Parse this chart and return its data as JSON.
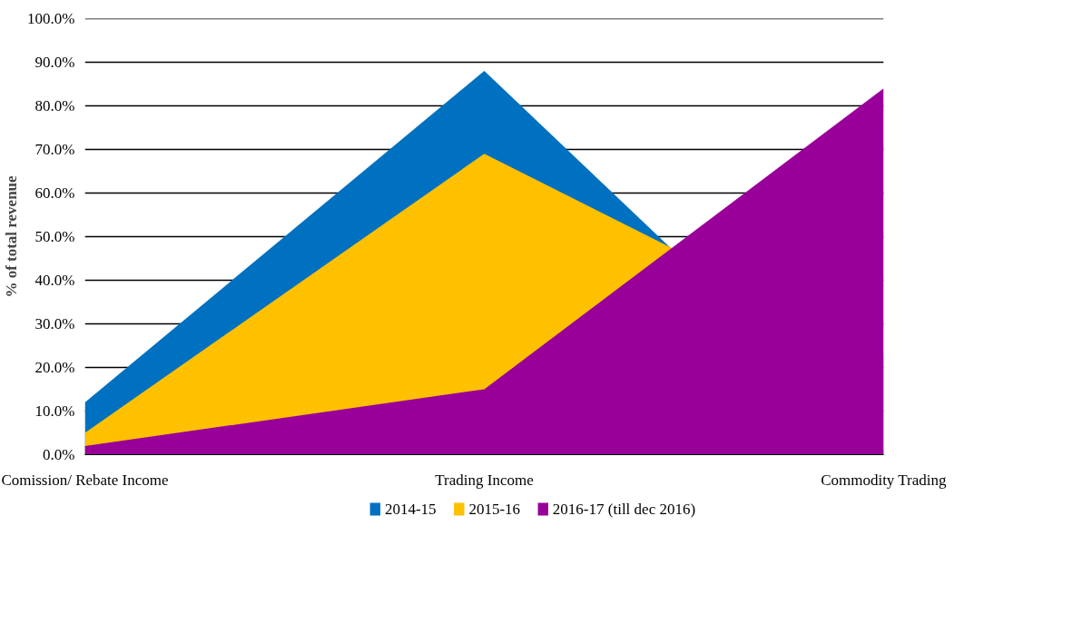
{
  "chart_data": {
    "type": "area",
    "ylabel": "% of total revenue",
    "categories": [
      "Comission/ Rebate Income",
      "Trading Income",
      "Commodity Trading"
    ],
    "series": [
      {
        "name": "2014-15",
        "color": "#0070c0",
        "values": [
          12,
          88,
          1
        ]
      },
      {
        "name": "2015-16",
        "color": "#ffc000",
        "values": [
          5,
          69,
          23
        ]
      },
      {
        "name": "2016-17  (till dec 2016)",
        "color": "#990099",
        "values": [
          2,
          15,
          84
        ]
      }
    ],
    "ylim": [
      0,
      100
    ],
    "yticks": [
      {
        "value": 0,
        "label": "0.0%"
      },
      {
        "value": 10,
        "label": "10.0%"
      },
      {
        "value": 20,
        "label": "20.0%"
      },
      {
        "value": 30,
        "label": "30.0%"
      },
      {
        "value": 40,
        "label": "40.0%"
      },
      {
        "value": 50,
        "label": "50.0%"
      },
      {
        "value": 60,
        "label": "60.0%"
      },
      {
        "value": 70,
        "label": "70.0%"
      },
      {
        "value": 80,
        "label": "80.0%"
      },
      {
        "value": 90,
        "label": "90.0%"
      },
      {
        "value": 100,
        "label": "100.0%"
      }
    ],
    "grid": "y",
    "legend": "bottom"
  }
}
